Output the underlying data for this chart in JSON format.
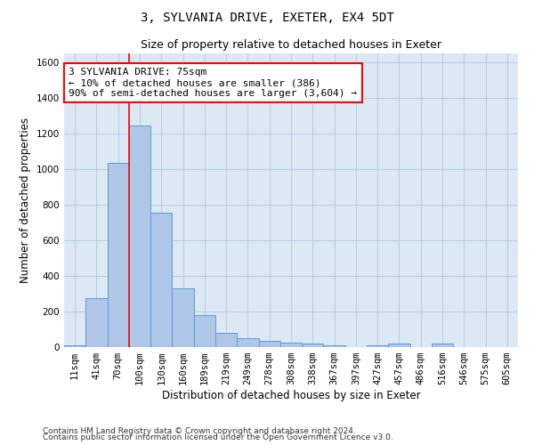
{
  "title": "3, SYLVANIA DRIVE, EXETER, EX4 5DT",
  "subtitle": "Size of property relative to detached houses in Exeter",
  "xlabel": "Distribution of detached houses by size in Exeter",
  "ylabel": "Number of detached properties",
  "categories": [
    "11sqm",
    "41sqm",
    "70sqm",
    "100sqm",
    "130sqm",
    "160sqm",
    "189sqm",
    "219sqm",
    "249sqm",
    "278sqm",
    "308sqm",
    "338sqm",
    "367sqm",
    "397sqm",
    "427sqm",
    "457sqm",
    "486sqm",
    "516sqm",
    "546sqm",
    "575sqm",
    "605sqm"
  ],
  "values": [
    10,
    275,
    1035,
    1245,
    755,
    330,
    180,
    80,
    48,
    35,
    25,
    18,
    12,
    0,
    10,
    18,
    0,
    18,
    0,
    0,
    0
  ],
  "bar_color": "#aec6e8",
  "bar_edge_color": "#5b9bd5",
  "annotation_line1": "3 SYLVANIA DRIVE: 75sqm",
  "annotation_line2": "← 10% of detached houses are smaller (386)",
  "annotation_line3": "90% of semi-detached houses are larger (3,604) →",
  "ylim": [
    0,
    1650
  ],
  "yticks": [
    0,
    200,
    400,
    600,
    800,
    1000,
    1200,
    1400,
    1600
  ],
  "footer_line1": "Contains HM Land Registry data © Crown copyright and database right 2024.",
  "footer_line2": "Contains public sector information licensed under the Open Government Licence v3.0.",
  "background_color": "#ffffff",
  "axes_bg_color": "#dce9f5",
  "grid_color": "#b0c4de",
  "title_fontsize": 10,
  "subtitle_fontsize": 9,
  "axis_label_fontsize": 8.5,
  "tick_fontsize": 7.5,
  "annotation_fontsize": 8,
  "footer_fontsize": 6.5
}
